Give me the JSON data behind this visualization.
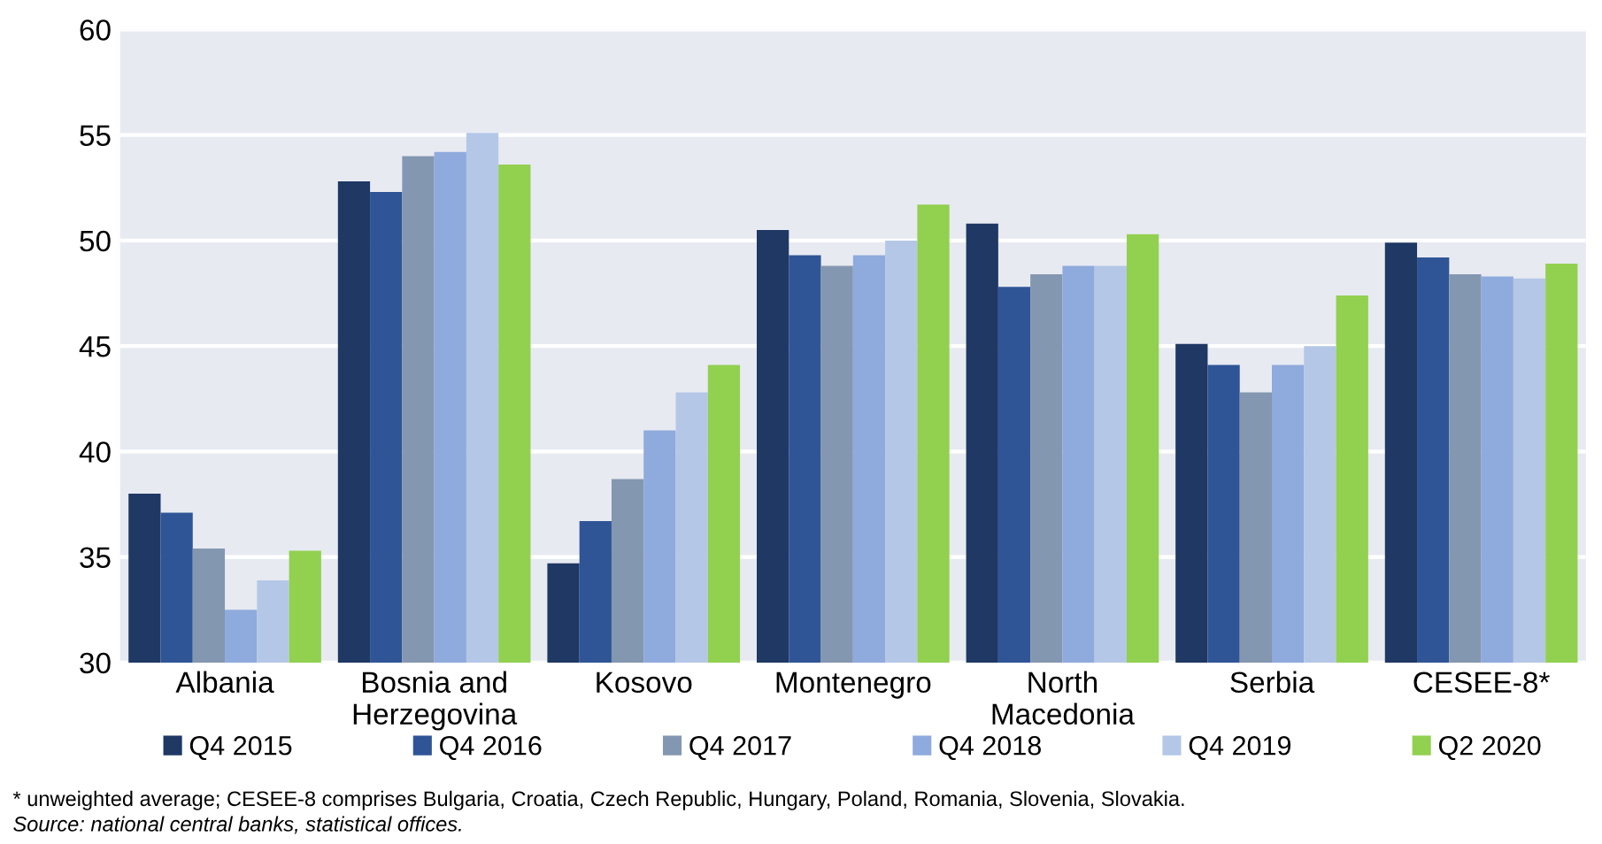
{
  "chart_data": {
    "type": "bar",
    "categories": [
      "Albania",
      "Bosnia and\nHerzegovina",
      "Kosovo",
      "Montenegro",
      "North\nMacedonia",
      "Serbia",
      "CESEE-8*"
    ],
    "series": [
      {
        "name": "Q4 2015",
        "color": "#1f3864",
        "values": [
          38.0,
          52.8,
          34.7,
          50.5,
          50.8,
          45.1,
          49.9
        ]
      },
      {
        "name": "Q4 2016",
        "color": "#2f5597",
        "values": [
          37.1,
          52.3,
          36.7,
          49.3,
          47.8,
          44.1,
          49.2
        ]
      },
      {
        "name": "Q4 2017",
        "color": "#8497b0",
        "values": [
          35.4,
          54.0,
          38.7,
          48.8,
          48.4,
          42.8,
          48.4
        ]
      },
      {
        "name": "Q4 2018",
        "color": "#8faadc",
        "values": [
          32.5,
          54.2,
          41.0,
          49.3,
          48.8,
          44.1,
          48.3
        ]
      },
      {
        "name": "Q4 2019",
        "color": "#b4c7e7",
        "values": [
          33.9,
          55.1,
          42.8,
          50.0,
          48.8,
          45.0,
          48.2
        ]
      },
      {
        "name": "Q2 2020",
        "color": "#92d050",
        "values": [
          35.3,
          53.6,
          44.1,
          51.7,
          50.3,
          47.4,
          48.9
        ]
      }
    ],
    "ylim": [
      30,
      60
    ],
    "yticks": [
      30,
      35,
      40,
      45,
      50,
      55,
      60
    ],
    "grid": "y",
    "legend": "bottom",
    "annotations": [
      "* unweighted average; CESEE-8 comprises Bulgaria, Croatia, Czech Republic, Hungary, Poland, Romania, Slovenia, Slovakia.",
      "Source: national central banks, statistical offices."
    ]
  }
}
